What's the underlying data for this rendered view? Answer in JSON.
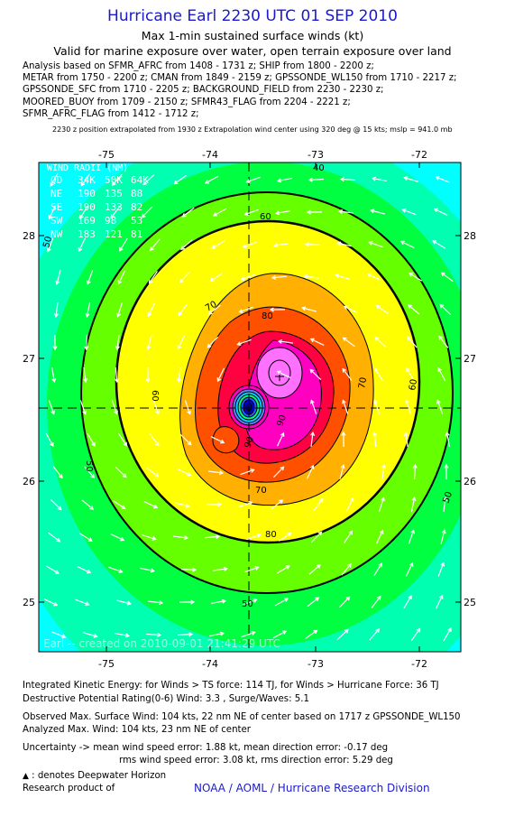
{
  "header": {
    "title": "Hurricane Earl 2230 UTC 01 SEP 2010",
    "subtitle1": "Max 1-min sustained surface winds (kt)",
    "subtitle2": "Valid for marine exposure over water, open terrain exposure over land"
  },
  "analysis_lines": [
    "Analysis based on SFMR_AFRC from 1408 - 1731 z; SHIP from 1800 - 2200 z;",
    "METAR from 1750 - 2200 z; CMAN from 1849 - 2159 z; GPSSONDE_WL150 from 1710 - 2217 z;",
    "GPSSONDE_SFC from 1710 - 2205 z; BACKGROUND_FIELD from 2230 - 2230 z;",
    "MOORED_BUOY from 1709 - 2150 z; SFMR43_FLAG from 2204 - 2221 z;",
    "SFMR_AFRC_FLAG from 1412 - 1712 z;"
  ],
  "position_note": "2230 z position extrapolated from 1930 z Extrapolation wind center using 320 deg @ 15 kts; mslp = 941.0 mb",
  "map": {
    "lon_ticks": [
      "-75",
      "-74",
      "-73",
      "-72"
    ],
    "lat_ticks": [
      "28",
      "27",
      "26",
      "25"
    ],
    "contour_labels": [
      "40",
      "50",
      "50",
      "50",
      "60",
      "60",
      "60",
      "70",
      "70",
      "70",
      "80",
      "80",
      "90",
      "90",
      "50"
    ],
    "watermark": "Earl -- created on 2010-09-01 21:41:29 UTC"
  },
  "wind_radii": {
    "title": "WIND RADII (NM)",
    "header": [
      "QD",
      "34K",
      "50K",
      "64K"
    ],
    "rows": [
      [
        "NE",
        "190",
        "135",
        "88"
      ],
      [
        "SE",
        "190",
        "133",
        "82"
      ],
      [
        "SW",
        "169",
        "98",
        "53"
      ],
      [
        "NW",
        "183",
        "121",
        "81"
      ]
    ]
  },
  "footer": {
    "ike": "Integrated Kinetic Energy:  for Winds > TS force: 114 TJ,  for Winds > Hurricane Force: 36 TJ",
    "dpr": "Destructive Potential Rating(0-6)   Wind: 3.3 , Surge/Waves: 5.1",
    "obs": "Observed Max. Surface Wind: 104 kts, 22 nm NE of center based on 1717 z GPSSONDE_WL150",
    "analyzed": "Analyzed Max. Wind: 104 kts, 23 nm NE of center",
    "unc1": "Uncertainty -> mean wind speed error: 1.88 kt,   mean direction error:  -0.17 deg",
    "unc2": "rms wind speed error: 3.08 kt,   rms direction error: 5.29 deg",
    "legend_marker": "▲",
    "legend": ": denotes Deepwater Horizon",
    "research": "Research product of",
    "org": "NOAA / AOML / Hurricane Research Division"
  },
  "colors": {
    "title": "#1a1acc",
    "bands": [
      "#00ffff",
      "#00ffb0",
      "#00ff40",
      "#66ff00",
      "#ffff00",
      "#ffb000",
      "#ff5000",
      "#ff0040",
      "#ff00c0",
      "#ff70ff"
    ]
  }
}
